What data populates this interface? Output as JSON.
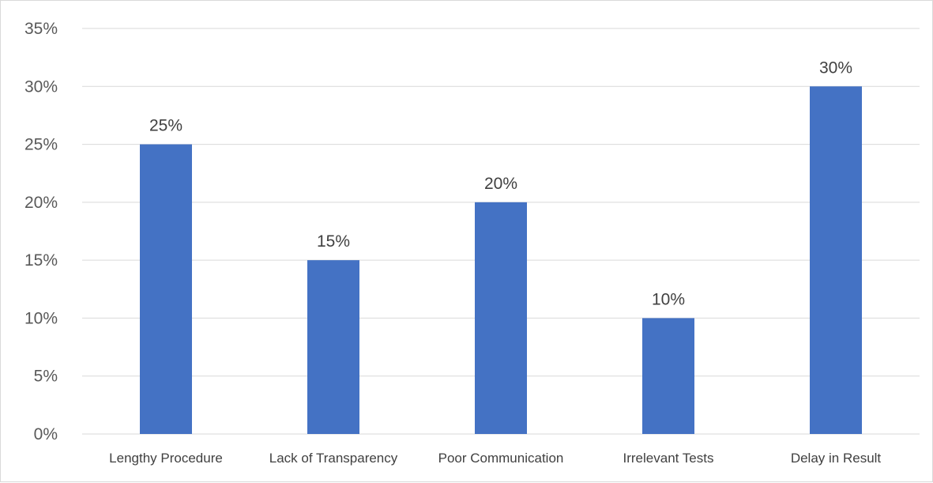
{
  "chart_data": {
    "type": "bar",
    "title": "",
    "xlabel": "",
    "ylabel": "",
    "categories": [
      "Lengthy Procedure",
      "Lack of Transparency",
      "Poor Communication",
      "Irrelevant Tests",
      "Delay in Result"
    ],
    "values": [
      25,
      15,
      20,
      10,
      30
    ],
    "data_labels": [
      "25%",
      "15%",
      "20%",
      "10%",
      "30%"
    ],
    "y_ticks": [
      "0%",
      "5%",
      "10%",
      "15%",
      "20%",
      "25%",
      "30%",
      "35%"
    ],
    "ylim": [
      0,
      35
    ],
    "grid": true,
    "legend": "none",
    "colors": {
      "bar": "#4472C4",
      "grid": "#d9d9d9"
    }
  }
}
